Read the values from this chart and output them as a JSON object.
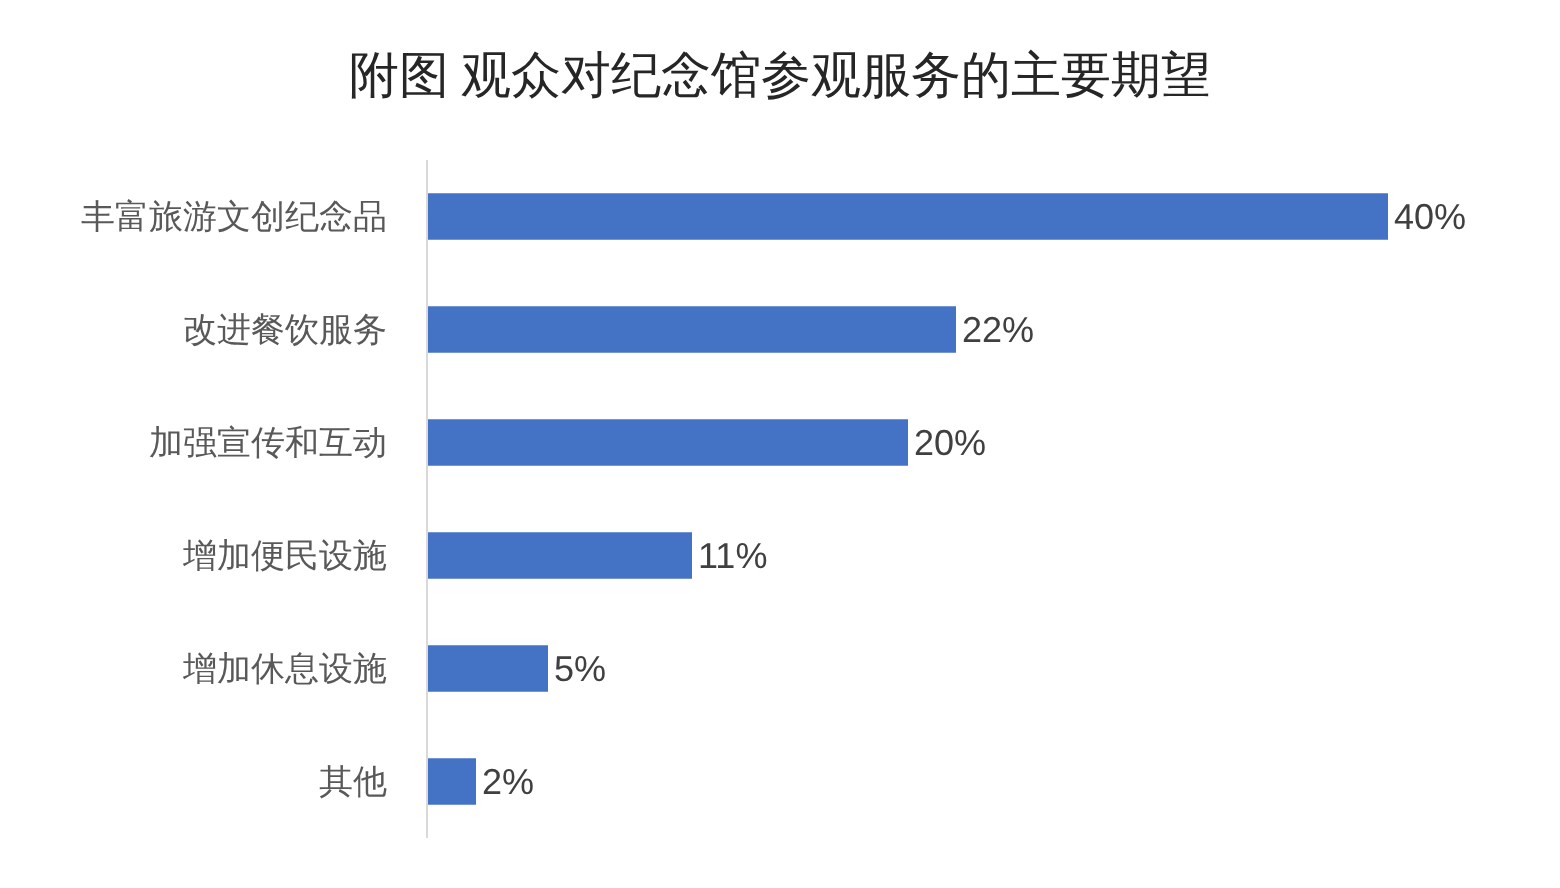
{
  "chart_data": {
    "type": "bar",
    "orientation": "horizontal",
    "title": "附图 观众对纪念馆参观服务的主要期望",
    "categories": [
      "丰富旅游文创纪念品",
      "改进餐饮服务",
      "加强宣传和互动",
      "增加便民设施",
      "增加休息设施",
      "其他"
    ],
    "values": [
      40,
      22,
      20,
      11,
      5,
      2
    ],
    "value_labels": [
      "40%",
      "22%",
      "20%",
      "11%",
      "5%",
      "2%"
    ],
    "color": "#4472c4"
  }
}
